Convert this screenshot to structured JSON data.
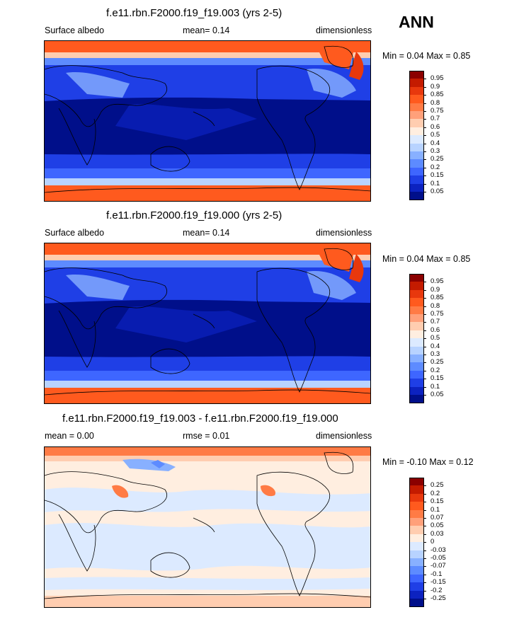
{
  "season_label": "ANN",
  "panels": [
    {
      "title": "f.e11.rbn.F2000.f19_f19.003 (yrs 2-5)",
      "left_label": "Surface albedo",
      "center_label": "mean=   0.14",
      "right_label": "dimensionless",
      "minmax": "Min =   0.04 Max =   0.85",
      "type": "field"
    },
    {
      "title": "f.e11.rbn.F2000.f19_f19.000 (yrs 2-5)",
      "left_label": "Surface albedo",
      "center_label": "mean=   0.14",
      "right_label": "dimensionless",
      "minmax": "Min =   0.04 Max =   0.85",
      "type": "field"
    },
    {
      "title": "f.e11.rbn.F2000.f19_f19.003 - f.e11.rbn.F2000.f19_f19.000",
      "left_label": "mean =   0.00",
      "center_label": "rmse =   0.01",
      "right_label": "dimensionless",
      "minmax": "Min =  -0.10 Max =   0.12",
      "type": "diff"
    }
  ],
  "colorbar_field": {
    "levels": [
      "0.95",
      "0.9",
      "0.85",
      "0.8",
      "0.75",
      "0.7",
      "0.6",
      "0.5",
      "0.4",
      "0.3",
      "0.25",
      "0.2",
      "0.15",
      "0.1",
      "0.05"
    ],
    "colors": [
      "#8b0000",
      "#c41b00",
      "#e8380d",
      "#ff5a1e",
      "#ff7b45",
      "#ffa07a",
      "#ffcdb0",
      "#ffeee0",
      "#dceaff",
      "#b8d3ff",
      "#88b0ff",
      "#5d8bff",
      "#3e66ff",
      "#1f3fe6",
      "#0c22c0",
      "#000f8a"
    ]
  },
  "colorbar_diff": {
    "levels": [
      "0.25",
      "0.2",
      "0.15",
      "0.1",
      "0.07",
      "0.05",
      "0.03",
      "0",
      "-0.03",
      "-0.05",
      "-0.07",
      "-0.1",
      "-0.15",
      "-0.2",
      "-0.25"
    ],
    "colors": [
      "#8b0000",
      "#c41b00",
      "#e8380d",
      "#ff5a1e",
      "#ff7b45",
      "#ffa07a",
      "#ffcdb0",
      "#ffeee0",
      "#dceaff",
      "#b8d3ff",
      "#88b0ff",
      "#5d8bff",
      "#3e66ff",
      "#1f3fe6",
      "#0c22c0",
      "#000f8a"
    ]
  }
}
